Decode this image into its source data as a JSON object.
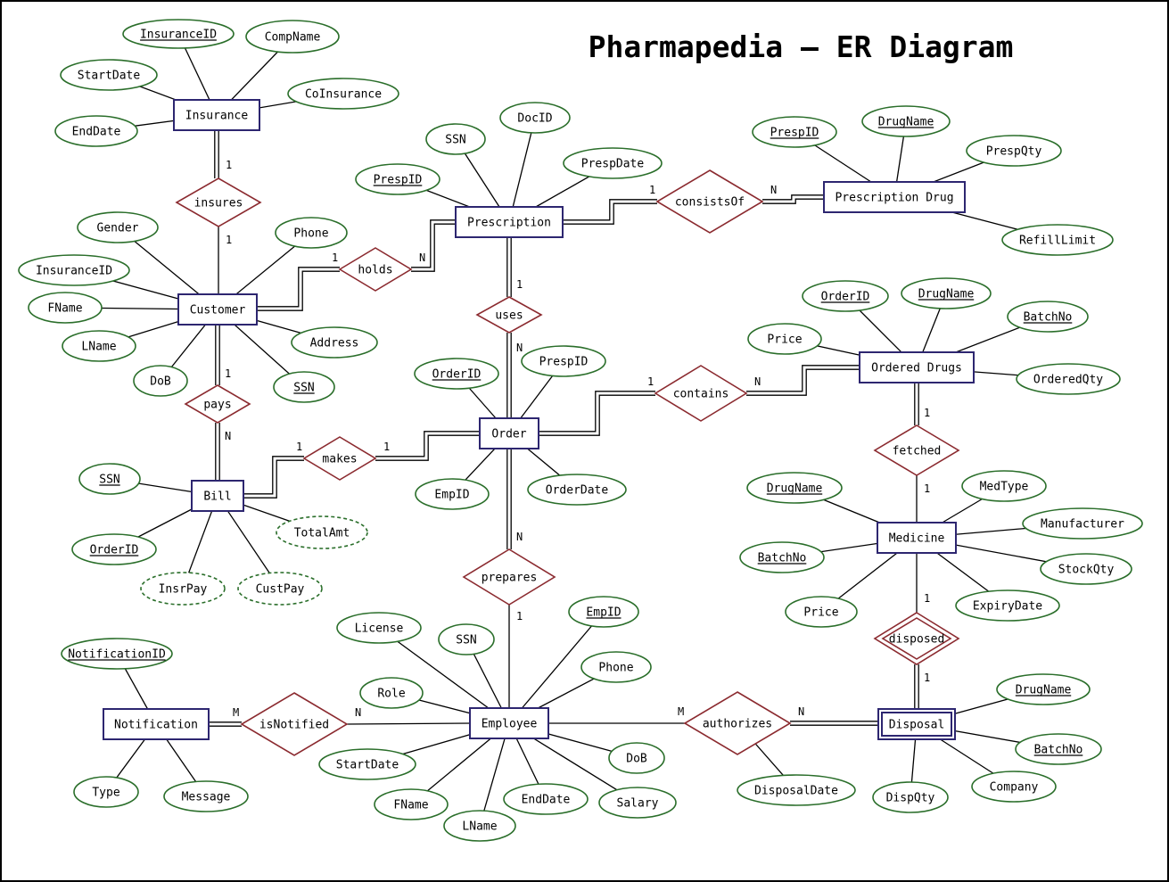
{
  "title": "Pharmapedia – ER Diagram",
  "colors": {
    "entity": "#2d2670",
    "relationship": "#8b2a2f",
    "attribute": "#2a6e2a",
    "line": "#000000"
  },
  "entities": [
    {
      "id": "insurance",
      "label": "Insurance"
    },
    {
      "id": "customer",
      "label": "Customer"
    },
    {
      "id": "bill",
      "label": "Bill"
    },
    {
      "id": "prescription",
      "label": "Prescription"
    },
    {
      "id": "prescription_drug",
      "label": "Prescription Drug"
    },
    {
      "id": "order",
      "label": "Order"
    },
    {
      "id": "ordered_drugs",
      "label": "Ordered Drugs"
    },
    {
      "id": "medicine",
      "label": "Medicine"
    },
    {
      "id": "employee",
      "label": "Employee"
    },
    {
      "id": "notification",
      "label": "Notification"
    },
    {
      "id": "disposal",
      "label": "Disposal",
      "weak": true
    }
  ],
  "relationships": [
    {
      "id": "insures",
      "label": "insures"
    },
    {
      "id": "holds",
      "label": "holds"
    },
    {
      "id": "pays",
      "label": "pays"
    },
    {
      "id": "makes",
      "label": "makes"
    },
    {
      "id": "uses",
      "label": "uses"
    },
    {
      "id": "consists_of",
      "label": "consistsOf"
    },
    {
      "id": "contains",
      "label": "contains"
    },
    {
      "id": "fetched",
      "label": "fetched"
    },
    {
      "id": "prepares",
      "label": "prepares"
    },
    {
      "id": "is_notified",
      "label": "isNotified"
    },
    {
      "id": "authorizes",
      "label": "authorizes"
    },
    {
      "id": "disposed",
      "label": "disposed",
      "identifying": true
    }
  ],
  "attributes": [
    {
      "id": "ins_id",
      "label": "InsuranceID",
      "key": true,
      "of": "insurance"
    },
    {
      "id": "ins_comp",
      "label": "CompName",
      "of": "insurance"
    },
    {
      "id": "ins_start",
      "label": "StartDate",
      "of": "insurance"
    },
    {
      "id": "ins_coins",
      "label": "CoInsurance",
      "of": "insurance"
    },
    {
      "id": "ins_end",
      "label": "EndDate",
      "of": "insurance"
    },
    {
      "id": "cus_gender",
      "label": "Gender",
      "of": "customer"
    },
    {
      "id": "cus_phone",
      "label": "Phone",
      "of": "customer"
    },
    {
      "id": "cus_insid",
      "label": "InsuranceID",
      "of": "customer"
    },
    {
      "id": "cus_fname",
      "label": "FName",
      "of": "customer"
    },
    {
      "id": "cus_lname",
      "label": "LName",
      "of": "customer"
    },
    {
      "id": "cus_address",
      "label": "Address",
      "of": "customer"
    },
    {
      "id": "cus_dob",
      "label": "DoB",
      "of": "customer"
    },
    {
      "id": "cus_ssn",
      "label": "SSN",
      "key": true,
      "of": "customer"
    },
    {
      "id": "bill_ssn",
      "label": "SSN",
      "key": true,
      "of": "bill"
    },
    {
      "id": "bill_total",
      "label": "TotalAmt",
      "derived": true,
      "of": "bill"
    },
    {
      "id": "bill_orderid",
      "label": "OrderID",
      "key": true,
      "of": "bill"
    },
    {
      "id": "bill_insr",
      "label": "InsrPay",
      "derived": true,
      "of": "bill"
    },
    {
      "id": "bill_cust",
      "label": "CustPay",
      "derived": true,
      "of": "bill"
    },
    {
      "id": "pre_ssn",
      "label": "SSN",
      "of": "prescription"
    },
    {
      "id": "pre_docid",
      "label": "DocID",
      "of": "prescription"
    },
    {
      "id": "pre_date",
      "label": "PrespDate",
      "of": "prescription"
    },
    {
      "id": "pre_id",
      "label": "PrespID",
      "key": true,
      "of": "prescription"
    },
    {
      "id": "pd_id",
      "label": "PrespID",
      "key": true,
      "of": "prescription_drug"
    },
    {
      "id": "pd_drug",
      "label": "DrugName",
      "key": true,
      "of": "prescription_drug"
    },
    {
      "id": "pd_qty",
      "label": "PrespQty",
      "of": "prescription_drug"
    },
    {
      "id": "pd_refill",
      "label": "RefillLimit",
      "of": "prescription_drug"
    },
    {
      "id": "ord_id",
      "label": "OrderID",
      "key": true,
      "of": "order"
    },
    {
      "id": "ord_presp",
      "label": "PrespID",
      "of": "order"
    },
    {
      "id": "ord_emp",
      "label": "EmpID",
      "of": "order"
    },
    {
      "id": "ord_date",
      "label": "OrderDate",
      "of": "order"
    },
    {
      "id": "od_orderid",
      "label": "OrderID",
      "key": true,
      "of": "ordered_drugs"
    },
    {
      "id": "od_drug",
      "label": "DrugName",
      "key": true,
      "of": "ordered_drugs"
    },
    {
      "id": "od_batch",
      "label": "BatchNo",
      "key": true,
      "of": "ordered_drugs"
    },
    {
      "id": "od_price",
      "label": "Price",
      "of": "ordered_drugs"
    },
    {
      "id": "od_qty",
      "label": "OrderedQty",
      "of": "ordered_drugs"
    },
    {
      "id": "med_drug",
      "label": "DrugName",
      "key": true,
      "of": "medicine"
    },
    {
      "id": "med_type",
      "label": "MedType",
      "of": "medicine"
    },
    {
      "id": "med_manu",
      "label": "Manufacturer",
      "of": "medicine"
    },
    {
      "id": "med_batch",
      "label": "BatchNo",
      "key": true,
      "of": "medicine"
    },
    {
      "id": "med_stock",
      "label": "StockQty",
      "of": "medicine"
    },
    {
      "id": "med_price",
      "label": "Price",
      "of": "medicine"
    },
    {
      "id": "med_expiry",
      "label": "ExpiryDate",
      "of": "medicine"
    },
    {
      "id": "emp_license",
      "label": "License",
      "of": "employee"
    },
    {
      "id": "emp_ssn",
      "label": "SSN",
      "of": "employee"
    },
    {
      "id": "emp_id",
      "label": "EmpID",
      "key": true,
      "of": "employee"
    },
    {
      "id": "emp_phone",
      "label": "Phone",
      "of": "employee"
    },
    {
      "id": "emp_role",
      "label": "Role",
      "of": "employee"
    },
    {
      "id": "emp_start",
      "label": "StartDate",
      "of": "employee"
    },
    {
      "id": "emp_fname",
      "label": "FName",
      "of": "employee"
    },
    {
      "id": "emp_lname",
      "label": "LName",
      "of": "employee"
    },
    {
      "id": "emp_end",
      "label": "EndDate",
      "of": "employee"
    },
    {
      "id": "emp_salary",
      "label": "Salary",
      "of": "employee"
    },
    {
      "id": "emp_dob",
      "label": "DoB",
      "of": "employee"
    },
    {
      "id": "not_id",
      "label": "NotificationID",
      "key": true,
      "of": "notification"
    },
    {
      "id": "not_type",
      "label": "Type",
      "of": "notification"
    },
    {
      "id": "not_msg",
      "label": "Message",
      "of": "notification"
    },
    {
      "id": "dis_drug",
      "label": "DrugName",
      "key": true,
      "of": "disposal"
    },
    {
      "id": "dis_batch",
      "label": "BatchNo",
      "key": true,
      "of": "disposal"
    },
    {
      "id": "dis_qty",
      "label": "DispQty",
      "of": "disposal"
    },
    {
      "id": "dis_company",
      "label": "Company",
      "of": "disposal"
    },
    {
      "id": "dis_date",
      "label": "DisposalDate",
      "of": "authorizes"
    }
  ],
  "connections": [
    {
      "from": "insurance",
      "to": "insures",
      "double": true,
      "card": "1"
    },
    {
      "from": "insures",
      "to": "customer",
      "card": "1"
    },
    {
      "from": "customer",
      "to": "holds",
      "double": true,
      "card": "1"
    },
    {
      "from": "holds",
      "to": "prescription",
      "double": true,
      "card": "N"
    },
    {
      "from": "customer",
      "to": "pays",
      "double": true,
      "card": "1"
    },
    {
      "from": "pays",
      "to": "bill",
      "double": true,
      "card": "N"
    },
    {
      "from": "bill",
      "to": "makes",
      "double": true,
      "card": "1"
    },
    {
      "from": "makes",
      "to": "order",
      "double": true,
      "card": "1"
    },
    {
      "from": "prescription",
      "to": "uses",
      "double": true,
      "card": "1"
    },
    {
      "from": "uses",
      "to": "order",
      "double": true,
      "card": "N"
    },
    {
      "from": "prescription",
      "to": "consists_of",
      "double": true,
      "card": "1"
    },
    {
      "from": "consists_of",
      "to": "prescription_drug",
      "double": true,
      "card": "N"
    },
    {
      "from": "order",
      "to": "contains",
      "double": true,
      "card": "1"
    },
    {
      "from": "contains",
      "to": "ordered_drugs",
      "double": true,
      "card": "N"
    },
    {
      "from": "ordered_drugs",
      "to": "fetched",
      "double": true,
      "card": "1"
    },
    {
      "from": "fetched",
      "to": "medicine",
      "card": "1"
    },
    {
      "from": "order",
      "to": "prepares",
      "double": true,
      "card": "N"
    },
    {
      "from": "prepares",
      "to": "employee",
      "card": "1"
    },
    {
      "from": "notification",
      "to": "is_notified",
      "double": true,
      "card": "M"
    },
    {
      "from": "is_notified",
      "to": "employee",
      "card": "N"
    },
    {
      "from": "employee",
      "to": "authorizes",
      "card": "M"
    },
    {
      "from": "authorizes",
      "to": "disposal",
      "double": true,
      "card": "N"
    },
    {
      "from": "medicine",
      "to": "disposed",
      "card": "1"
    },
    {
      "from": "disposed",
      "to": "disposal",
      "double": true,
      "card": "1"
    }
  ]
}
